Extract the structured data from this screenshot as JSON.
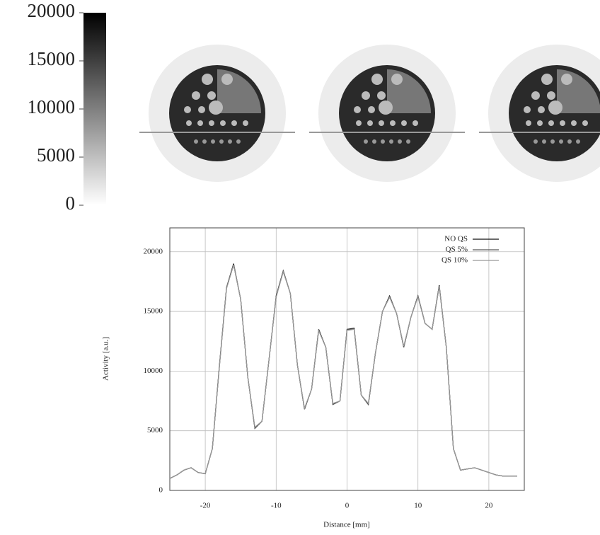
{
  "chart_data": [
    {
      "type": "colorbar",
      "ylim": [
        0,
        20000
      ],
      "yticks": [
        0,
        5000,
        10000,
        15000,
        20000
      ]
    },
    {
      "type": "line",
      "x_label": "Distance [mm]",
      "y_label": "Activity [a.u.]",
      "x": [
        -25,
        -24,
        -23,
        -22,
        -21,
        -20,
        -19,
        -18,
        -17,
        -16,
        -15,
        -14,
        -13,
        -12,
        -11,
        -10,
        -9,
        -8,
        -7,
        -6,
        -5,
        -4,
        -3,
        -2,
        -1,
        0,
        1,
        2,
        3,
        4,
        5,
        6,
        7,
        8,
        9,
        10,
        11,
        12,
        13,
        14,
        15,
        16,
        17,
        18,
        19,
        20,
        21,
        22,
        23,
        24
      ],
      "series": [
        {
          "name": "NO QS",
          "color": "#111111",
          "values": [
            1000,
            1300,
            1700,
            1900,
            1500,
            1400,
            3500,
            10500,
            17000,
            19000,
            16000,
            9500,
            5200,
            5800,
            11000,
            16300,
            18400,
            16500,
            10500,
            6800,
            8500,
            13500,
            12000,
            7200,
            7500,
            13500,
            13600,
            8000,
            7200,
            11500,
            15000,
            16300,
            14800,
            12000,
            14500,
            16300,
            14000,
            13500,
            17200,
            12000,
            3500,
            1700,
            1800,
            1900,
            1700,
            1500,
            1300,
            1200,
            1200,
            1200
          ]
        },
        {
          "name": "QS 5%",
          "color": "#555555",
          "values": [
            1000,
            1300,
            1700,
            1900,
            1500,
            1400,
            3500,
            10400,
            17000,
            18900,
            16000,
            9500,
            5200,
            5800,
            11000,
            16200,
            18400,
            16500,
            10500,
            6800,
            8500,
            13400,
            12000,
            7200,
            7500,
            13500,
            13500,
            8000,
            7200,
            11500,
            15000,
            16200,
            14800,
            12000,
            14500,
            16300,
            14000,
            13500,
            17100,
            12000,
            3500,
            1700,
            1800,
            1900,
            1700,
            1500,
            1300,
            1200,
            1200,
            1200
          ]
        },
        {
          "name": "QS 10%",
          "color": "#999999",
          "values": [
            1000,
            1300,
            1700,
            1900,
            1500,
            1400,
            3500,
            10400,
            16900,
            18900,
            16000,
            9500,
            5300,
            5800,
            11000,
            16200,
            18300,
            16500,
            10500,
            6900,
            8500,
            13400,
            12000,
            7300,
            7500,
            13400,
            13500,
            8000,
            7300,
            11500,
            15000,
            16200,
            14800,
            12100,
            14500,
            16200,
            14000,
            13500,
            17100,
            12000,
            3500,
            1700,
            1800,
            1900,
            1700,
            1500,
            1300,
            1200,
            1200,
            1200
          ]
        }
      ],
      "xlim": [
        -25,
        25
      ],
      "xticks": [
        -20,
        -10,
        0,
        10,
        20
      ],
      "ylim": [
        0,
        22000
      ],
      "yticks": [
        0,
        5000,
        10000,
        15000,
        20000
      ],
      "grid": true,
      "legend": "top-right"
    }
  ]
}
